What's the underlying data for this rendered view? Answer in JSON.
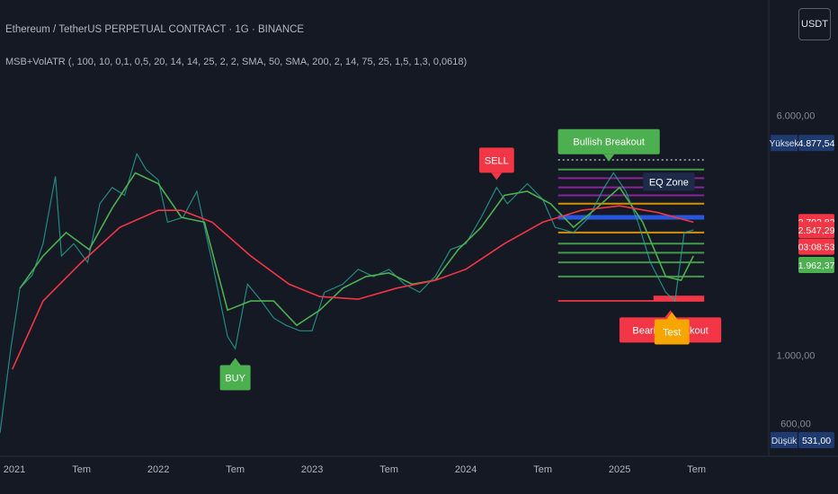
{
  "header": {
    "title": "Ethereum / TetherUS PERPETUAL CONTRACT · 1G · BINANCE",
    "indicator": "MSB+VolATR (, 100, 10, 0,1, 0,5, 20, 14, 14, 25, 2, 2, SMA, 50, SMA, 200, 2, 14, 75, 25, 1,5, 1,3, 0,0618)"
  },
  "currency_button": {
    "label": "USDT"
  },
  "chart_data": {
    "type": "line",
    "y_scale": "log",
    "ylim": [
      480,
      7500
    ],
    "y_ticks": [
      {
        "label": "6.000,00",
        "value": 6000
      },
      {
        "label": "1.000,00",
        "value": 1000
      },
      {
        "label": "600,00",
        "value": 600
      }
    ],
    "x_ticks": [
      {
        "label": "2021",
        "value": 2021.0
      },
      {
        "label": "Tem",
        "value": 2021.5
      },
      {
        "label": "2022",
        "value": 2022.0
      },
      {
        "label": "Tem",
        "value": 2022.5
      },
      {
        "label": "2023",
        "value": 2023.0
      },
      {
        "label": "Tem",
        "value": 2023.5
      },
      {
        "label": "2024",
        "value": 2024.0
      },
      {
        "label": "Tem",
        "value": 2024.5
      },
      {
        "label": "2025",
        "value": 2025.0
      },
      {
        "label": "Tem",
        "value": 2025.5
      }
    ],
    "xlim": [
      2020.97,
      2025.97
    ],
    "series": [
      {
        "color": "#26a69a",
        "points": [
          [
            2020.97,
            560
          ],
          [
            2021.04,
            1050
          ],
          [
            2021.1,
            1650
          ],
          [
            2021.18,
            1820
          ],
          [
            2021.25,
            2300
          ],
          [
            2021.33,
            3800
          ],
          [
            2021.37,
            2100
          ],
          [
            2021.45,
            2300
          ],
          [
            2021.54,
            2000
          ],
          [
            2021.62,
            3100
          ],
          [
            2021.7,
            3500
          ],
          [
            2021.78,
            3300
          ],
          [
            2021.86,
            4500
          ],
          [
            2021.92,
            4000
          ],
          [
            2022.0,
            3700
          ],
          [
            2022.06,
            2700
          ],
          [
            2022.16,
            2800
          ],
          [
            2022.25,
            3400
          ],
          [
            2022.35,
            2000
          ],
          [
            2022.45,
            1150
          ],
          [
            2022.5,
            1050
          ],
          [
            2022.58,
            1700
          ],
          [
            2022.67,
            1500
          ],
          [
            2022.75,
            1320
          ],
          [
            2022.83,
            1250
          ],
          [
            2022.92,
            1200
          ],
          [
            2023.0,
            1200
          ],
          [
            2023.08,
            1600
          ],
          [
            2023.2,
            1700
          ],
          [
            2023.3,
            1900
          ],
          [
            2023.4,
            1800
          ],
          [
            2023.5,
            1900
          ],
          [
            2023.6,
            1700
          ],
          [
            2023.7,
            1600
          ],
          [
            2023.8,
            1800
          ],
          [
            2023.9,
            2200
          ],
          [
            2024.0,
            2300
          ],
          [
            2024.1,
            2800
          ],
          [
            2024.2,
            3500
          ],
          [
            2024.27,
            3100
          ],
          [
            2024.4,
            3600
          ],
          [
            2024.5,
            3200
          ],
          [
            2024.58,
            2600
          ],
          [
            2024.7,
            2500
          ],
          [
            2024.8,
            2800
          ],
          [
            2024.9,
            3500
          ],
          [
            2024.96,
            3900
          ],
          [
            2025.04,
            3400
          ],
          [
            2025.12,
            2700
          ],
          [
            2025.2,
            2000
          ],
          [
            2025.3,
            1600
          ],
          [
            2025.36,
            1500
          ],
          [
            2025.42,
            2500
          ],
          [
            2025.48,
            2547
          ]
        ]
      },
      {
        "color": "#4caf50",
        "points": [
          [
            2021.1,
            1650
          ],
          [
            2021.25,
            2100
          ],
          [
            2021.4,
            2500
          ],
          [
            2021.55,
            2200
          ],
          [
            2021.7,
            3000
          ],
          [
            2021.85,
            3900
          ],
          [
            2022.0,
            3600
          ],
          [
            2022.15,
            2800
          ],
          [
            2022.3,
            2700
          ],
          [
            2022.45,
            1400
          ],
          [
            2022.6,
            1500
          ],
          [
            2022.75,
            1500
          ],
          [
            2022.9,
            1250
          ],
          [
            2023.05,
            1400
          ],
          [
            2023.2,
            1650
          ],
          [
            2023.35,
            1800
          ],
          [
            2023.5,
            1850
          ],
          [
            2023.65,
            1700
          ],
          [
            2023.8,
            1750
          ],
          [
            2023.95,
            2200
          ],
          [
            2024.1,
            2600
          ],
          [
            2024.25,
            3300
          ],
          [
            2024.4,
            3400
          ],
          [
            2024.55,
            3100
          ],
          [
            2024.7,
            2600
          ],
          [
            2024.85,
            3000
          ],
          [
            2025.0,
            3500
          ],
          [
            2025.15,
            2700
          ],
          [
            2025.3,
            1800
          ],
          [
            2025.4,
            1750
          ],
          [
            2025.48,
            2100
          ]
        ]
      },
      {
        "color": "#f23645",
        "points": [
          [
            2021.05,
            900
          ],
          [
            2021.25,
            1500
          ],
          [
            2021.5,
            2000
          ],
          [
            2021.75,
            2600
          ],
          [
            2022.0,
            2950
          ],
          [
            2022.15,
            2950
          ],
          [
            2022.35,
            2700
          ],
          [
            2022.6,
            2100
          ],
          [
            2022.85,
            1700
          ],
          [
            2023.05,
            1550
          ],
          [
            2023.3,
            1520
          ],
          [
            2023.55,
            1650
          ],
          [
            2023.8,
            1750
          ],
          [
            2024.0,
            1900
          ],
          [
            2024.25,
            2300
          ],
          [
            2024.5,
            2700
          ],
          [
            2024.75,
            2950
          ],
          [
            2025.0,
            3050
          ],
          [
            2025.25,
            2900
          ],
          [
            2025.48,
            2700
          ]
        ]
      }
    ],
    "level_lines": [
      {
        "value": 4000,
        "color": "#4caf50"
      },
      {
        "value": 3750,
        "color": "#9c27b0"
      },
      {
        "value": 3500,
        "color": "#9c27b0"
      },
      {
        "value": 3300,
        "color": "#9c27b0"
      },
      {
        "value": 3100,
        "color": "#f7a600"
      },
      {
        "value": 2800,
        "color": "#2962ff"
      },
      {
        "value": 2500,
        "color": "#f7a600"
      },
      {
        "value": 2300,
        "color": "#4caf50"
      },
      {
        "value": 2150,
        "color": "#4caf50"
      },
      {
        "value": 2000,
        "color": "#4caf50"
      },
      {
        "value": 1800,
        "color": "#4caf50"
      },
      {
        "value": 1500,
        "color": "#f23645"
      }
    ],
    "labels": [
      {
        "text": "SELL",
        "x": 2024.2,
        "y": 3700,
        "bg": "#f23645",
        "dir": "down"
      },
      {
        "text": "Bullish Breakout",
        "x": 2024.93,
        "y": 4250,
        "bg": "#4caf50",
        "dir": "down"
      },
      {
        "text": "EQ Zone",
        "x": 2025.32,
        "y": 3650,
        "bg": "#1e2a4a",
        "dir": "none"
      },
      {
        "text": "BUY",
        "x": 2022.5,
        "y": 980,
        "bg": "#4caf50",
        "dir": "up"
      },
      {
        "text": "Bearish Breakout",
        "x": 2025.33,
        "y": 1400,
        "bg": "#f23645",
        "dir": "up"
      },
      {
        "text": "Test",
        "x": 2025.34,
        "y": 1380,
        "bg": "#f7a600",
        "dir": "up"
      }
    ],
    "price_tags": [
      {
        "prefix": "Yüksek",
        "label": "4.877,54",
        "value": 4877.54,
        "bg": "#1e3a6e"
      },
      {
        "label": "2.702,82",
        "value": 2702.82,
        "bg": "#f23645"
      },
      {
        "label": "2.547,29",
        "value": 2547.29,
        "bg": "#f23645"
      },
      {
        "label": "03:08:53",
        "value": 2250,
        "bg": "#f23645"
      },
      {
        "label": "1.962,37",
        "value": 1962.37,
        "bg": "#4caf50"
      },
      {
        "prefix": "Düşük",
        "label": "531,00",
        "value": 531,
        "bg": "#1e3a6e"
      }
    ]
  }
}
